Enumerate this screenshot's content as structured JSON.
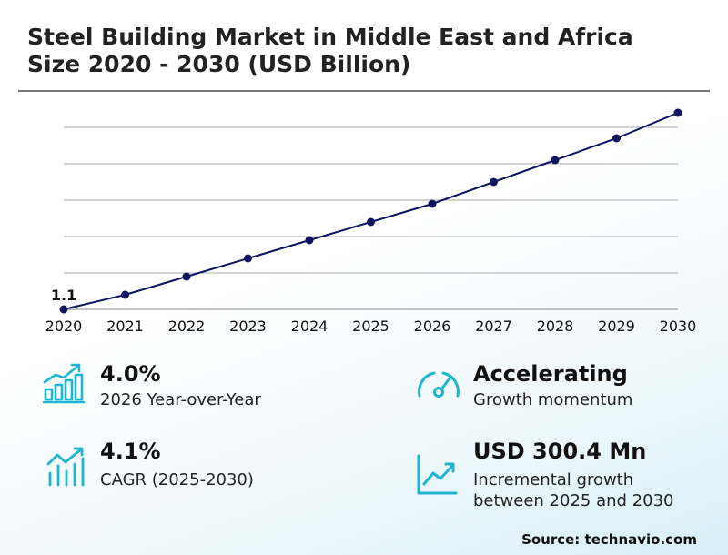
{
  "title": "Steel Building Market in Middle East and Africa Size 2020 - 2030 (USD Billion)",
  "chart_data": {
    "type": "line",
    "x": [
      "2020",
      "2021",
      "2022",
      "2023",
      "2024",
      "2025",
      "2026",
      "2027",
      "2028",
      "2029",
      "2030"
    ],
    "series": [
      {
        "values": [
          1.1,
          1.14,
          1.19,
          1.24,
          1.29,
          1.34,
          1.39,
          1.45,
          1.51,
          1.57,
          1.64
        ]
      }
    ],
    "data_labels": [
      {
        "index": 0,
        "text": "1.1"
      }
    ],
    "ylim": [
      1.1,
      1.6
    ],
    "grid": true,
    "line_color": "#0f1560"
  },
  "stats": [
    {
      "value": "4.0%",
      "label": "2026 Year-over-Year",
      "icon": "bar-chart-growth-icon"
    },
    {
      "value": "Accelerating",
      "label": "Growth momentum",
      "icon": "speedometer-icon"
    },
    {
      "value": "4.1%",
      "label": "CAGR (2025-2030)",
      "icon": "trend-up-bars-icon"
    },
    {
      "value": "USD 300.4 Mn",
      "label_lines": [
        "Incremental growth",
        "between 2025 and 2030"
      ],
      "icon": "line-chart-up-icon"
    }
  ],
  "source": "Source: technavio.com",
  "accent_color": "#1fb5d1"
}
